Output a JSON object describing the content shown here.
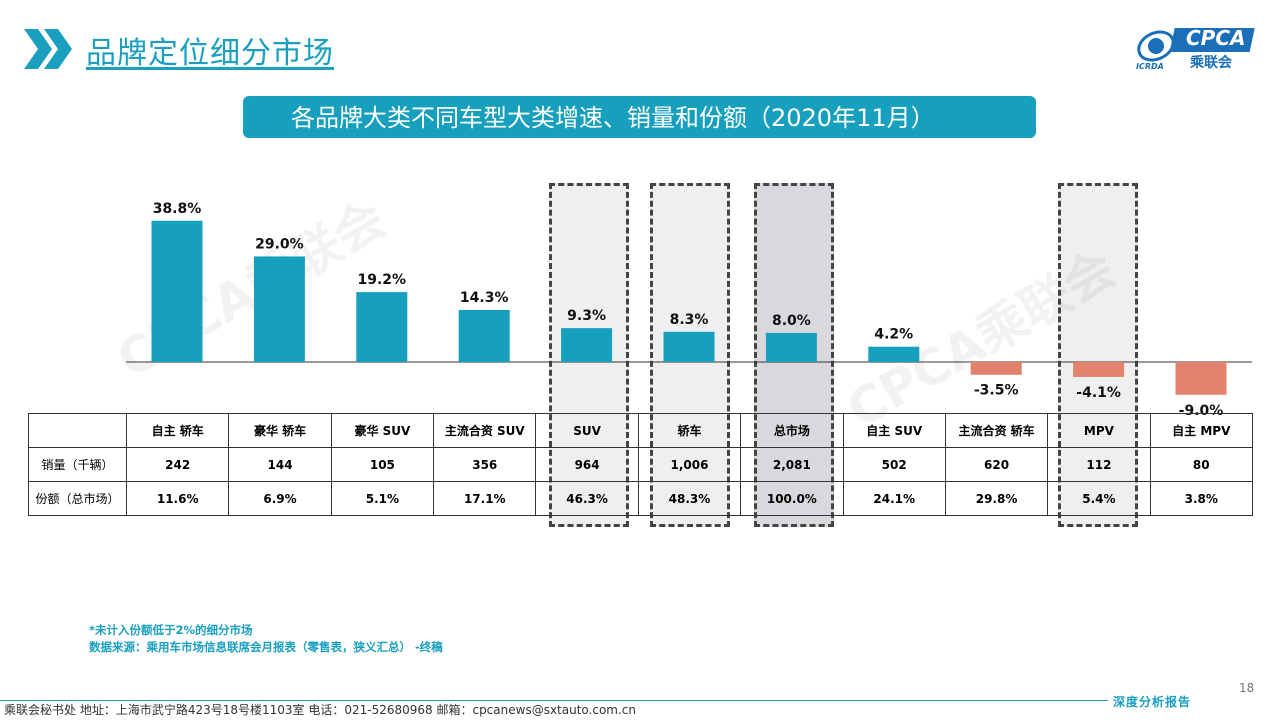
{
  "page": {
    "title": "品牌定位细分市场",
    "banner": "各品牌大类不同车型大类增速、销量和份额（2020年11月）",
    "logo_text": "CPCA",
    "logo_subtext": "乘联会",
    "logo_small": "ICRDA",
    "watermark": "CPCA乘联会",
    "footnote_line1": "*未计入份额低于2%的细分市场",
    "footnote_line2": "数据来源：乘用车市场信息联席会月报表（零售表，狭义汇总）  -终稿",
    "footer": "乘联会秘书处    地址：上海市武宁路423号18号楼1103室    电话：021-52680968    邮箱：cpcanews@sxtauto.com.cn",
    "page_number": "18",
    "report_label": "深度分析报告"
  },
  "colors": {
    "accent": "#1a9fbf",
    "bar_positive": "#17a0bd",
    "bar_negative": "#e0836a",
    "highlight_fill": "#efefef",
    "highlight_total_fill": "#d9d8dd"
  },
  "table": {
    "row_labels": [
      "",
      "销量（千辆）",
      "份额（总市场）"
    ],
    "sales": [
      "242",
      "144",
      "105",
      "356",
      "964",
      "1,006",
      "2,081",
      "502",
      "620",
      "112",
      "80"
    ],
    "share": [
      "11.6%",
      "6.9%",
      "5.1%",
      "17.1%",
      "46.3%",
      "48.3%",
      "100.0%",
      "24.1%",
      "29.8%",
      "5.4%",
      "3.8%"
    ]
  },
  "chart_data": {
    "type": "bar",
    "categories": [
      "自主 轿车",
      "豪华 轿车",
      "豪华 SUV",
      "主流合资 SUV",
      "SUV",
      "轿车",
      "总市场",
      "自主 SUV",
      "主流合资 轿车",
      "MPV",
      "自主 MPV"
    ],
    "values": [
      38.8,
      29.0,
      19.2,
      14.3,
      9.3,
      8.3,
      8.0,
      4.2,
      -3.5,
      -4.1,
      -9.0
    ],
    "data_labels": [
      "38.8%",
      "29.0%",
      "19.2%",
      "14.3%",
      "9.3%",
      "8.3%",
      "8.0%",
      "4.2%",
      "-3.5%",
      "-4.1%",
      "-9.0%"
    ],
    "highlighted": [
      "SUV",
      "轿车",
      "总市场",
      "MPV"
    ],
    "title": "各品牌大类不同车型大类增速、销量和份额（2020年11月）",
    "xlabel": "",
    "ylabel": "",
    "grid": false,
    "legend": "none"
  }
}
